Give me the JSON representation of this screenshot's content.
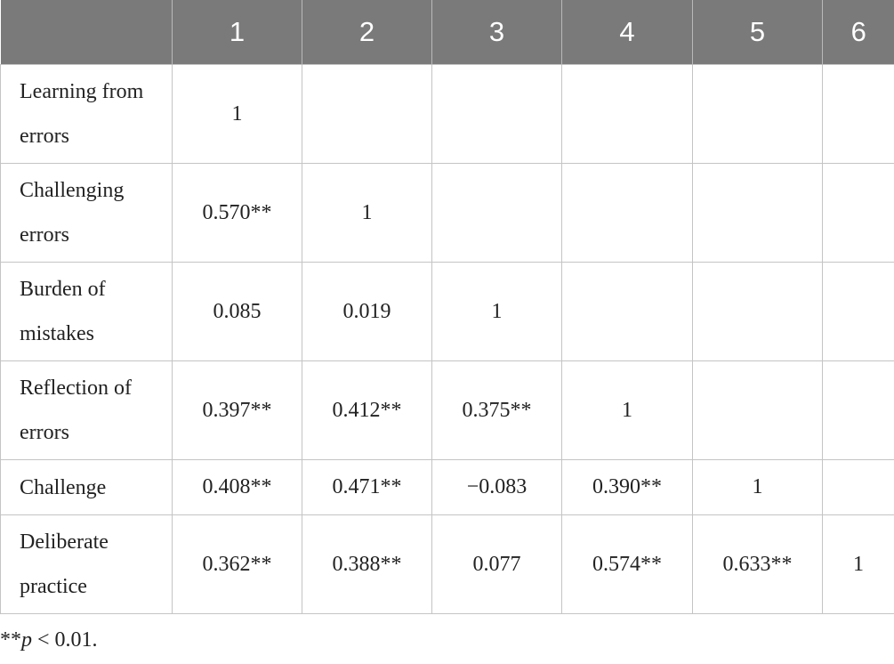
{
  "table": {
    "header_corner": "",
    "columns": [
      "1",
      "2",
      "3",
      "4",
      "5",
      "6"
    ],
    "rows": [
      {
        "label": "Learning from errors",
        "cells": [
          "1",
          "",
          "",
          "",
          "",
          ""
        ]
      },
      {
        "label": "Challenging errors",
        "cells": [
          "0.570**",
          "1",
          "",
          "",
          "",
          ""
        ]
      },
      {
        "label": "Burden of mistakes",
        "cells": [
          "0.085",
          "0.019",
          "1",
          "",
          "",
          ""
        ]
      },
      {
        "label": "Reflection of errors",
        "cells": [
          "0.397**",
          "0.412**",
          "0.375**",
          "1",
          "",
          ""
        ]
      },
      {
        "label": "Challenge",
        "cells": [
          "0.408**",
          "0.471**",
          "−0.083",
          "0.390**",
          "1",
          ""
        ]
      },
      {
        "label": "Deliberate practice",
        "cells": [
          "0.362**",
          "0.388**",
          "0.077",
          "0.574**",
          "0.633**",
          "1"
        ]
      }
    ]
  },
  "footnote": {
    "stars": "**",
    "p_symbol": "p",
    "condition": " < 0.01."
  },
  "colors": {
    "header_background": "#7a7a7a",
    "header_text": "#ffffff",
    "grid_line": "#c4c4c4",
    "body_text": "#222222"
  }
}
